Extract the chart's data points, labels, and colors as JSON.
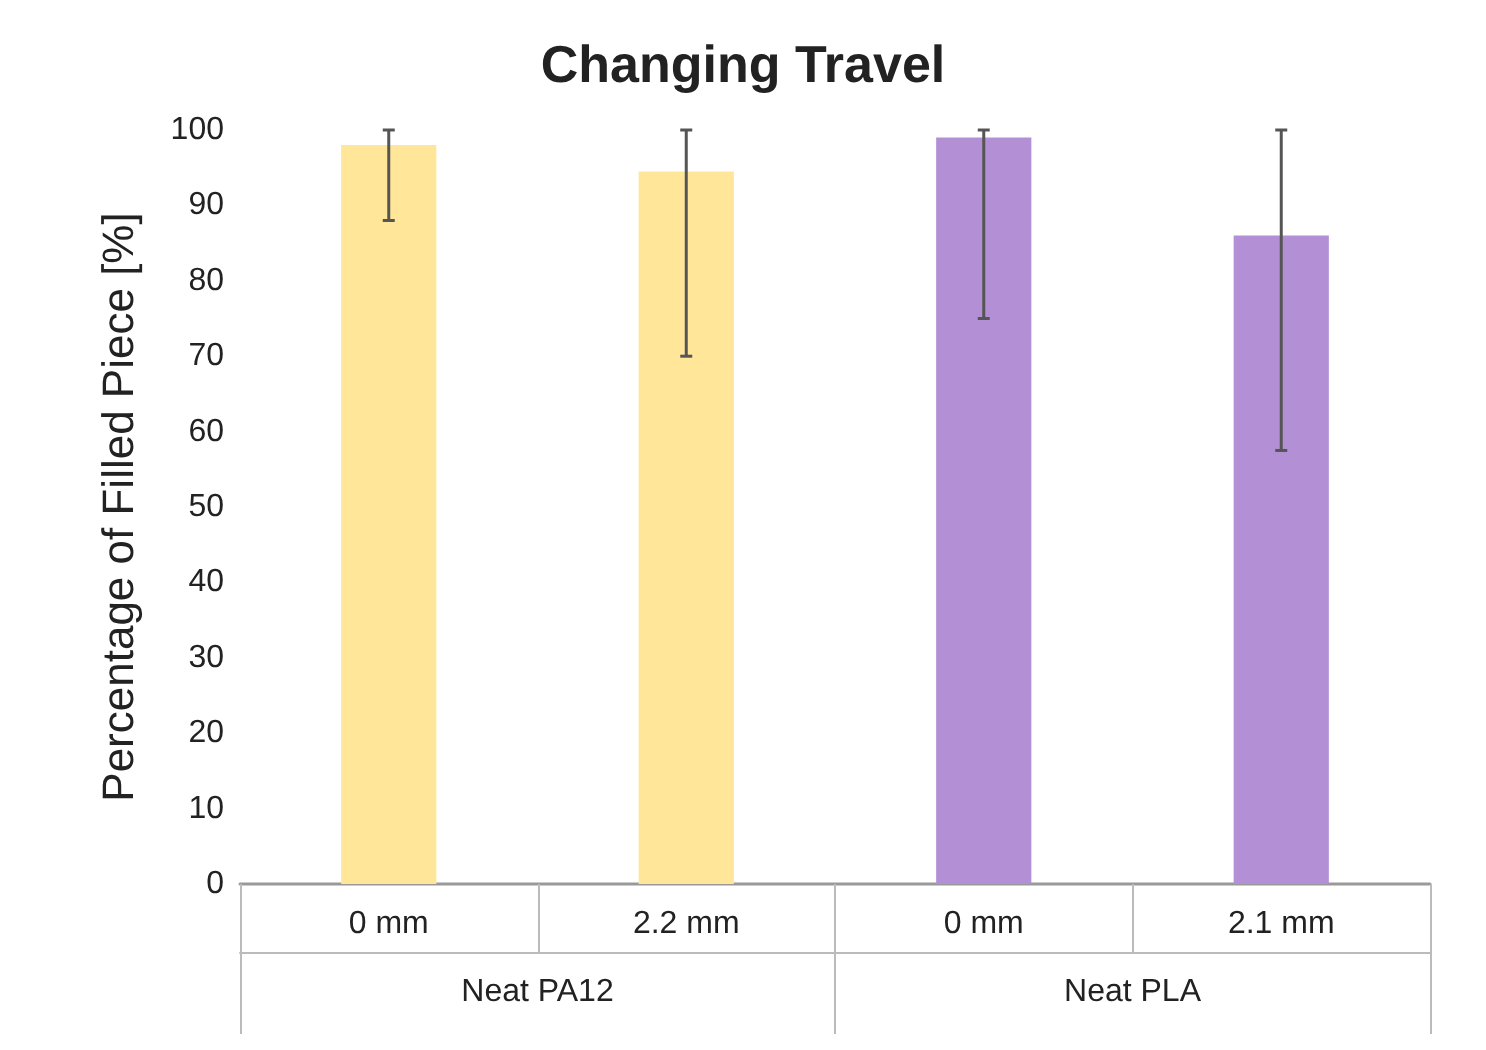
{
  "chart_data": {
    "type": "bar",
    "title": "Changing Travel",
    "ylabel": "Percentage of Filled Piece [%]",
    "categories": [
      "0 mm",
      "2.2 mm",
      "0 mm",
      "2.1 mm"
    ],
    "values": [
      98,
      94.5,
      99,
      86
    ],
    "colors": [
      "#ffe699",
      "#ffe699",
      "#b38fd6",
      "#b38fd6"
    ],
    "errors": [
      [
        88,
        100
      ],
      [
        70,
        100
      ],
      [
        75,
        100
      ],
      [
        57.5,
        100
      ]
    ],
    "annotations": [
      "Neat PA12",
      "Neat PLA"
    ],
    "ylim": [
      0,
      100
    ],
    "yticks": [
      0,
      10,
      20,
      30,
      40,
      50,
      60,
      70,
      80,
      90,
      100
    ],
    "grid": false
  }
}
